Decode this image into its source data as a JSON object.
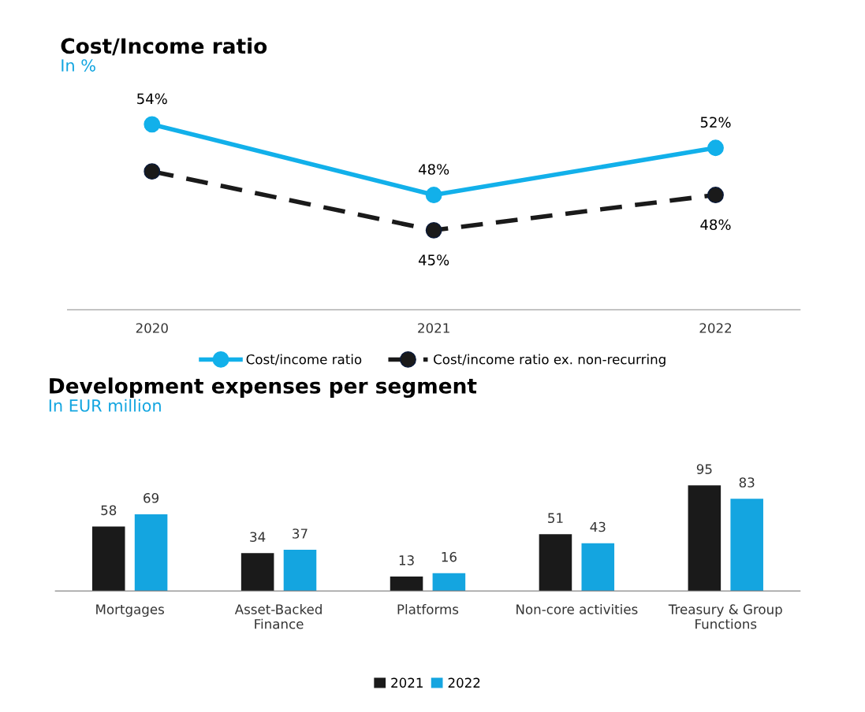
{
  "chart_data": [
    {
      "type": "line",
      "title": "Cost/Income ratio",
      "subtitle": "In %",
      "categories": [
        "2020",
        "2021",
        "2022"
      ],
      "tick_labels": "x",
      "legend": "bottom",
      "marker": "circle",
      "series": [
        {
          "name": "Cost/income ratio",
          "color": "#12b0ea",
          "values": [
            54,
            48,
            52
          ],
          "value_labels": [
            "54%",
            "48%",
            "52%"
          ],
          "line_style": "solid"
        },
        {
          "name": "Cost/income ratio ex. non-recurring",
          "color": "#1a1a1a",
          "values": [
            50,
            45,
            48
          ],
          "value_labels": [
            null,
            "45%",
            "48%"
          ],
          "line_style": "dashed"
        }
      ]
    },
    {
      "type": "bar",
      "title": "Development expenses per segment",
      "subtitle": "In EUR million",
      "categories": [
        "Mortgages",
        "Asset-Backed\nFinance",
        "Platforms",
        "Non-core activities",
        "Treasury & Group\nFunctions"
      ],
      "tick_labels": "x",
      "legend": "bottom",
      "data_labels": true,
      "series": [
        {
          "name": "2021",
          "color": "#1a1a1a",
          "values": [
            58,
            34,
            13,
            51,
            95
          ]
        },
        {
          "name": "2022",
          "color": "#14a5e0",
          "values": [
            69,
            37,
            16,
            43,
            83
          ]
        }
      ]
    }
  ]
}
